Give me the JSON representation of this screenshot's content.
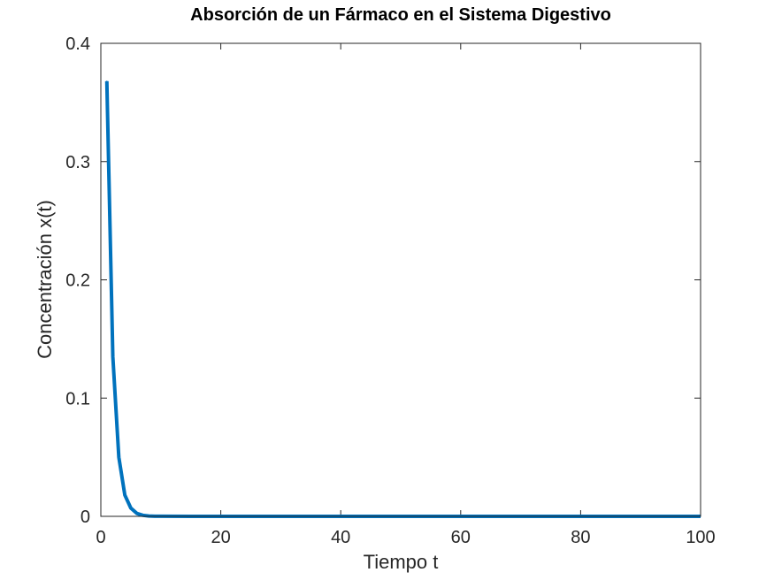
{
  "chart_data": {
    "type": "line",
    "title": "Absorción de un Fármaco en el Sistema Digestivo",
    "xlabel": "Tiempo t",
    "ylabel": "Concentración x(t)",
    "xlim": [
      0,
      100
    ],
    "ylim": [
      0,
      0.4
    ],
    "xticks": [
      "0",
      "20",
      "40",
      "60",
      "80",
      "100"
    ],
    "yticks": [
      "0",
      "0.1",
      "0.2",
      "0.3",
      "0.4"
    ],
    "grid": false,
    "legend": "none",
    "series": [
      {
        "color": "#0072BD",
        "x": [
          1,
          2,
          3,
          4,
          5,
          6,
          7,
          8,
          9,
          10,
          15,
          20,
          30,
          40,
          50,
          60,
          70,
          80,
          90,
          100
        ],
        "y": [
          0.368,
          0.135,
          0.05,
          0.018,
          0.007,
          0.0025,
          0.0009,
          0.0003,
          0.0001,
          5e-05,
          0,
          0,
          0,
          0,
          0,
          0,
          0,
          0,
          0,
          0
        ]
      }
    ]
  }
}
